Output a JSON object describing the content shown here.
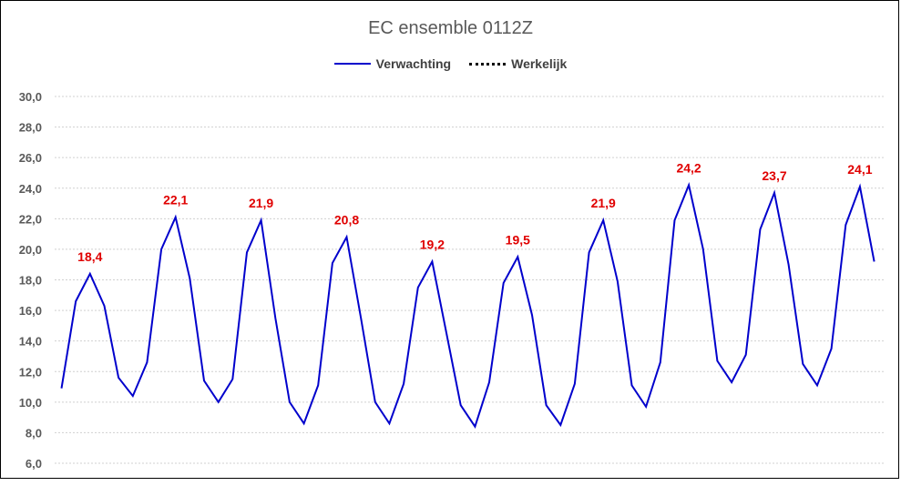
{
  "chart_data": {
    "type": "line",
    "title": "EC ensemble 0112Z",
    "xlabel": "",
    "ylabel": "",
    "ylim": [
      6,
      30
    ],
    "yticks": [
      "6,0",
      "8,0",
      "10,0",
      "12,0",
      "14,0",
      "16,0",
      "18,0",
      "20,0",
      "22,0",
      "24,0",
      "26,0",
      "28,0",
      "30,0"
    ],
    "grid": true,
    "legend_position": "top-center",
    "series": [
      {
        "name": "Verwachting",
        "color": "#0000cc",
        "style": "solid",
        "values": [
          10.9,
          16.6,
          18.4,
          16.3,
          11.6,
          10.4,
          12.6,
          20.0,
          22.1,
          18.1,
          11.4,
          10.0,
          11.5,
          19.8,
          21.9,
          15.5,
          10.0,
          8.6,
          11.1,
          19.1,
          20.8,
          15.5,
          10.0,
          8.6,
          11.2,
          17.5,
          19.2,
          14.5,
          9.8,
          8.4,
          11.3,
          17.8,
          19.5,
          15.7,
          9.8,
          8.5,
          11.2,
          19.8,
          21.9,
          17.9,
          11.1,
          9.7,
          12.6,
          21.9,
          24.2,
          20.0,
          12.7,
          11.3,
          13.1,
          21.3,
          23.7,
          19.0,
          12.5,
          11.1,
          13.5,
          21.6,
          24.1,
          19.2
        ]
      },
      {
        "name": "Werkelijk",
        "color": "#000000",
        "style": "dotted",
        "values": []
      }
    ],
    "data_labels": [
      {
        "index": 2,
        "text": "18,4"
      },
      {
        "index": 8,
        "text": "22,1"
      },
      {
        "index": 14,
        "text": "21,9"
      },
      {
        "index": 20,
        "text": "20,8"
      },
      {
        "index": 26,
        "text": "19,2"
      },
      {
        "index": 32,
        "text": "19,5"
      },
      {
        "index": 38,
        "text": "21,9"
      },
      {
        "index": 44,
        "text": "24,2"
      },
      {
        "index": 50,
        "text": "23,7"
      },
      {
        "index": 56,
        "text": "24,1"
      }
    ]
  }
}
